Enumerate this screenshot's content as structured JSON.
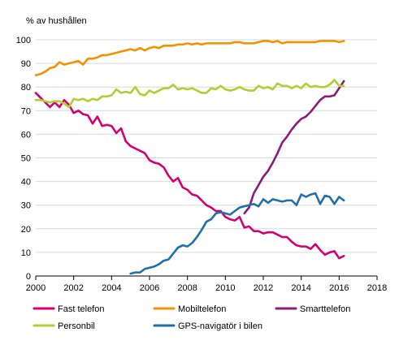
{
  "chart_data": {
    "type": "line",
    "title": "",
    "ylabel": "% av hushållen",
    "xlabel": "",
    "xlim": [
      2000,
      2018
    ],
    "ylim": [
      0,
      100
    ],
    "x_ticks": [
      2000,
      2002,
      2004,
      2006,
      2008,
      2010,
      2012,
      2014,
      2016,
      2018
    ],
    "y_ticks": [
      0,
      10,
      20,
      30,
      40,
      50,
      60,
      70,
      80,
      90,
      100
    ],
    "grid": "horizontal",
    "legend_position": "bottom",
    "series": [
      {
        "name": "Fast telefon",
        "color": "#d4006f",
        "x": [
          2000.0,
          2000.25,
          2000.5,
          2000.75,
          2001.0,
          2001.25,
          2001.5,
          2001.75,
          2002.0,
          2002.25,
          2002.5,
          2002.75,
          2003.0,
          2003.25,
          2003.5,
          2003.75,
          2004.0,
          2004.25,
          2004.5,
          2004.75,
          2005.0,
          2005.25,
          2005.5,
          2005.75,
          2006.0,
          2006.25,
          2006.5,
          2006.75,
          2007.0,
          2007.25,
          2007.5,
          2007.75,
          2008.0,
          2008.25,
          2008.5,
          2008.75,
          2009.0,
          2009.25,
          2009.5,
          2009.75,
          2010.0,
          2010.25,
          2010.5,
          2010.75,
          2011.0,
          2011.25,
          2011.5,
          2011.75,
          2012.0,
          2012.25,
          2012.5,
          2012.75,
          2013.0,
          2013.25,
          2013.5,
          2013.75,
          2014.0,
          2014.25,
          2014.5,
          2014.75,
          2015.0,
          2015.25,
          2015.5,
          2015.75,
          2016.0,
          2016.25
        ],
        "values": [
          77.5,
          75.5,
          73.5,
          71.5,
          73.5,
          71.5,
          74.5,
          72.5,
          69.0,
          70.0,
          68.5,
          68.0,
          64.5,
          67.5,
          63.5,
          64.0,
          63.5,
          60.5,
          62.5,
          57.0,
          55.0,
          54.0,
          53.0,
          52.0,
          49.0,
          48.0,
          47.5,
          46.0,
          42.5,
          40.0,
          41.5,
          37.5,
          36.5,
          34.5,
          34.0,
          32.0,
          30.0,
          29.0,
          27.5,
          27.5,
          25.0,
          24.0,
          23.5,
          25.0,
          20.5,
          21.0,
          19.0,
          19.0,
          18.0,
          18.5,
          18.5,
          17.5,
          16.5,
          16.5,
          14.5,
          13.0,
          12.5,
          12.5,
          11.5,
          13.5,
          11.0,
          9.0,
          10.0,
          10.5,
          7.5,
          8.5
        ]
      },
      {
        "name": "Mobiltelefon",
        "color": "#f39200",
        "x": [
          2000.0,
          2000.25,
          2000.5,
          2000.75,
          2001.0,
          2001.25,
          2001.5,
          2001.75,
          2002.0,
          2002.25,
          2002.5,
          2002.75,
          2003.0,
          2003.25,
          2003.5,
          2003.75,
          2004.0,
          2004.25,
          2004.5,
          2004.75,
          2005.0,
          2005.25,
          2005.5,
          2005.75,
          2006.0,
          2006.25,
          2006.5,
          2006.75,
          2007.0,
          2007.25,
          2007.5,
          2007.75,
          2008.0,
          2008.25,
          2008.5,
          2008.75,
          2009.0,
          2009.25,
          2009.5,
          2009.75,
          2010.0,
          2010.25,
          2010.5,
          2010.75,
          2011.0,
          2011.25,
          2011.5,
          2011.75,
          2012.0,
          2012.25,
          2012.5,
          2012.75,
          2013.0,
          2013.25,
          2013.5,
          2013.75,
          2014.0,
          2014.25,
          2014.5,
          2014.75,
          2015.0,
          2015.25,
          2015.5,
          2015.75,
          2016.0,
          2016.25
        ],
        "values": [
          85.0,
          85.5,
          86.5,
          88.0,
          88.5,
          90.5,
          89.5,
          90.0,
          90.5,
          91.0,
          89.5,
          92.0,
          92.0,
          92.5,
          93.5,
          93.5,
          94.0,
          94.5,
          95.0,
          95.5,
          96.0,
          95.5,
          96.5,
          95.5,
          96.5,
          97.0,
          96.5,
          97.5,
          97.5,
          97.5,
          98.0,
          98.0,
          98.5,
          98.0,
          98.5,
          98.0,
          98.5,
          98.5,
          98.5,
          98.5,
          98.5,
          98.5,
          99.0,
          99.0,
          98.5,
          98.5,
          98.5,
          99.0,
          99.5,
          99.5,
          99.0,
          99.5,
          98.5,
          99.0,
          99.0,
          99.0,
          99.0,
          99.0,
          99.0,
          99.0,
          99.5,
          99.5,
          99.5,
          99.5,
          99.0,
          99.5
        ]
      },
      {
        "name": "Smarttelefon",
        "color": "#8b1a7e",
        "x": [
          2011.0,
          2011.25,
          2011.5,
          2011.75,
          2012.0,
          2012.25,
          2012.5,
          2012.75,
          2013.0,
          2013.25,
          2013.5,
          2013.75,
          2014.0,
          2014.25,
          2014.5,
          2014.75,
          2015.0,
          2015.25,
          2015.5,
          2015.75,
          2016.0,
          2016.25
        ],
        "values": [
          26.5,
          29.0,
          35.0,
          38.5,
          42.0,
          44.5,
          48.0,
          52.0,
          56.5,
          59.0,
          62.0,
          64.5,
          66.5,
          67.5,
          69.5,
          72.0,
          74.5,
          76.0,
          76.0,
          76.5,
          79.5,
          82.5
        ]
      },
      {
        "name": "Personbil",
        "color": "#b0cf34",
        "x": [
          2000.0,
          2000.25,
          2000.5,
          2000.75,
          2001.0,
          2001.25,
          2001.5,
          2001.75,
          2002.0,
          2002.25,
          2002.5,
          2002.75,
          2003.0,
          2003.25,
          2003.5,
          2003.75,
          2004.0,
          2004.25,
          2004.5,
          2004.75,
          2005.0,
          2005.25,
          2005.5,
          2005.75,
          2006.0,
          2006.25,
          2006.5,
          2006.75,
          2007.0,
          2007.25,
          2007.5,
          2007.75,
          2008.0,
          2008.25,
          2008.5,
          2008.75,
          2009.0,
          2009.25,
          2009.5,
          2009.75,
          2010.0,
          2010.25,
          2010.5,
          2010.75,
          2011.0,
          2011.25,
          2011.5,
          2011.75,
          2012.0,
          2012.25,
          2012.5,
          2012.75,
          2013.0,
          2013.25,
          2013.5,
          2013.75,
          2014.0,
          2014.25,
          2014.5,
          2014.75,
          2015.0,
          2015.25,
          2015.5,
          2015.75,
          2016.0,
          2016.25
        ],
        "values": [
          74.5,
          74.5,
          74.0,
          73.5,
          74.0,
          74.0,
          73.0,
          71.5,
          75.0,
          74.5,
          75.0,
          74.0,
          75.0,
          74.5,
          76.0,
          76.0,
          76.5,
          79.0,
          77.5,
          78.0,
          77.5,
          80.0,
          77.0,
          76.5,
          78.5,
          77.5,
          78.5,
          79.5,
          79.5,
          81.0,
          79.0,
          79.5,
          79.0,
          79.5,
          78.5,
          77.5,
          77.5,
          79.5,
          79.0,
          80.5,
          79.0,
          78.5,
          79.0,
          80.0,
          79.0,
          78.5,
          78.5,
          80.5,
          79.5,
          80.0,
          79.0,
          81.5,
          80.5,
          80.5,
          79.5,
          80.5,
          79.5,
          81.5,
          80.0,
          80.5,
          80.0,
          80.0,
          81.0,
          83.0,
          80.5,
          80.5
        ]
      },
      {
        "name": "GPS-navigatör i bilen",
        "color": "#1f6fa8",
        "x": [
          2005.0,
          2005.25,
          2005.5,
          2005.75,
          2006.0,
          2006.25,
          2006.5,
          2006.75,
          2007.0,
          2007.25,
          2007.5,
          2007.75,
          2008.0,
          2008.25,
          2008.5,
          2008.75,
          2009.0,
          2009.25,
          2009.5,
          2009.75,
          2010.0,
          2010.25,
          2010.5,
          2010.75,
          2011.0,
          2011.25,
          2011.5,
          2011.75,
          2012.0,
          2012.25,
          2012.5,
          2012.75,
          2013.0,
          2013.25,
          2013.5,
          2013.75,
          2014.0,
          2014.25,
          2014.5,
          2014.75,
          2015.0,
          2015.25,
          2015.5,
          2015.75,
          2016.0,
          2016.25
        ],
        "values": [
          1.0,
          1.5,
          1.5,
          3.0,
          3.5,
          4.0,
          5.0,
          6.5,
          7.0,
          9.5,
          12.0,
          13.0,
          12.5,
          14.0,
          16.5,
          19.5,
          23.0,
          24.0,
          26.5,
          27.0,
          26.5,
          26.0,
          27.5,
          29.0,
          29.5,
          30.0,
          30.5,
          29.5,
          32.5,
          31.0,
          32.5,
          32.0,
          31.5,
          32.0,
          32.0,
          30.0,
          34.5,
          33.5,
          34.5,
          35.0,
          30.5,
          34.0,
          33.5,
          30.5,
          33.5,
          32.0
        ]
      }
    ]
  }
}
